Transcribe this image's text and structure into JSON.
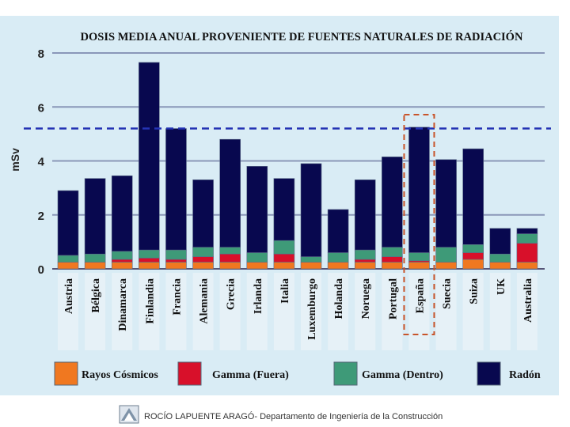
{
  "chart_data": {
    "type": "bar",
    "stacked": true,
    "title": "DOSIS MEDIA ANUAL PROVENIENTE DE FUENTES NATURALES DE RADIACIÓN",
    "ylabel": "mSv",
    "xlabel": "",
    "ylim": [
      0,
      8
    ],
    "yticks": [
      "0",
      "2",
      "4",
      "6",
      "8"
    ],
    "grid": true,
    "legend_position": "bottom",
    "reference_line": 5.2,
    "highlighted_category": "España",
    "categories": [
      "Austria",
      "Bélgica",
      "Dinamarca",
      "Finlandia",
      "Francia",
      "Alemania",
      "Grecia",
      "Irlanda",
      "Italia",
      "Luxemburgo",
      "Holanda",
      "Noruega",
      "Portugal",
      "España",
      "Suecia",
      "Suiza",
      "UK",
      "Australia"
    ],
    "series": [
      {
        "name": "Rayos Cósmicos",
        "color": "#f07820",
        "values": [
          0.25,
          0.25,
          0.25,
          0.25,
          0.25,
          0.25,
          0.25,
          0.25,
          0.25,
          0.25,
          0.25,
          0.25,
          0.25,
          0.25,
          0.25,
          0.35,
          0.25,
          0.25
        ]
      },
      {
        "name": "Gamma (Fuera)",
        "color": "#d8102a",
        "values": [
          0,
          0,
          0.1,
          0.15,
          0.1,
          0.2,
          0.3,
          0,
          0.3,
          0,
          0,
          0.1,
          0.2,
          0.05,
          0,
          0.25,
          0,
          0.7
        ]
      },
      {
        "name": "Gamma (Dentro)",
        "color": "#3e9a78",
        "values": [
          0.25,
          0.3,
          0.3,
          0.3,
          0.35,
          0.35,
          0.25,
          0.35,
          0.5,
          0.2,
          0.35,
          0.35,
          0.35,
          0.3,
          0.55,
          0.3,
          0.3,
          0.35
        ]
      },
      {
        "name": "Radón",
        "color": "#08084f",
        "values": [
          2.4,
          2.8,
          2.8,
          6.95,
          4.5,
          2.5,
          4.0,
          3.2,
          2.3,
          3.45,
          1.6,
          2.6,
          3.35,
          4.65,
          3.25,
          3.55,
          0.95,
          0.2
        ]
      }
    ]
  },
  "footer": {
    "text": "ROCÍO LAPUENTE ARAGÓ- Departamento de Ingeniería de la Construcción"
  }
}
